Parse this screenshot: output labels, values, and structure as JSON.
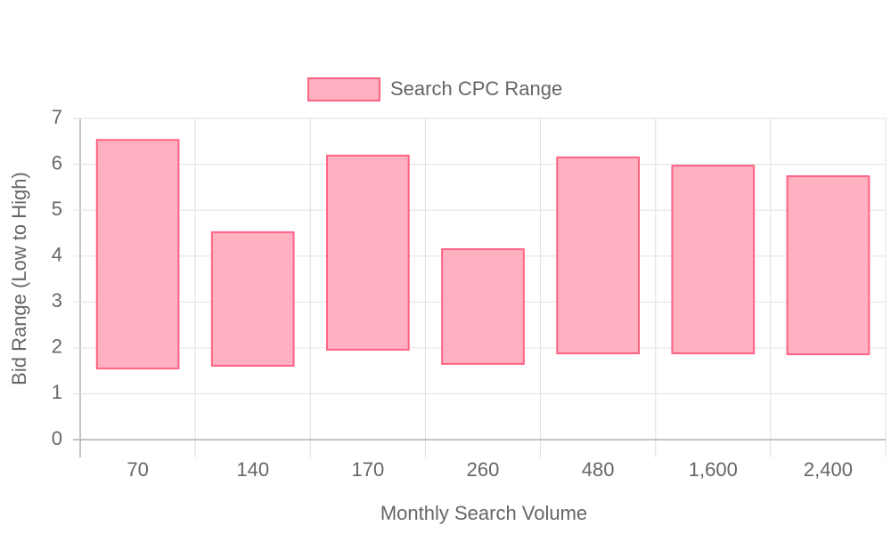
{
  "chart_data": {
    "type": "floating-bar",
    "categories": [
      "70",
      "140",
      "170",
      "260",
      "480",
      "1,600",
      "2,400"
    ],
    "series": [
      {
        "name": "Search CPC Range",
        "color": "#ff6384",
        "fill": "#ffb1c1",
        "values": [
          [
            1.55,
            6.53
          ],
          [
            1.61,
            4.52
          ],
          [
            1.96,
            6.19
          ],
          [
            1.65,
            4.15
          ],
          [
            1.88,
            6.15
          ],
          [
            1.88,
            5.97
          ],
          [
            1.86,
            5.74
          ]
        ]
      }
    ],
    "x_label": "Monthly Search Volume",
    "y_label": "Bid Range (Low to High)",
    "ylim": [
      0,
      7
    ],
    "yticks": [
      0,
      1,
      2,
      3,
      4,
      5,
      6,
      7
    ],
    "grid": true,
    "legend": "top"
  }
}
